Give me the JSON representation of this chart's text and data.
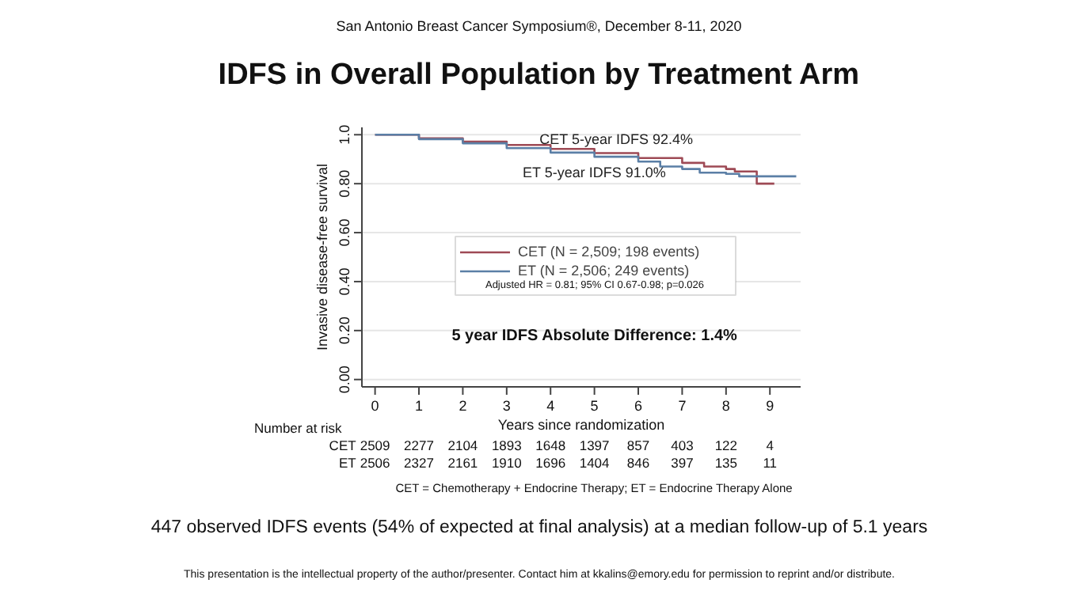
{
  "chart_data": {
    "type": "step",
    "subtitle": "San Antonio Breast Cancer Symposium®, December 8-11, 2020",
    "title": "IDFS in Overall Population by Treatment Arm",
    "xlabel": "Years since randomization",
    "ylabel": "Invasive disease-free survival",
    "xlim": [
      -0.3,
      9.7
    ],
    "xticks": [
      0,
      1,
      2,
      3,
      4,
      5,
      6,
      7,
      8,
      9
    ],
    "ylim": [
      -0.03,
      1.03
    ],
    "yticks": [
      {
        "value": 0,
        "label": "0.00"
      },
      {
        "value": 0.2,
        "label": "0.20"
      },
      {
        "value": 0.4,
        "label": "0.40"
      },
      {
        "value": 0.6,
        "label": "0.60"
      },
      {
        "value": 0.8,
        "label": "0.80"
      },
      {
        "value": 1,
        "label": "1.0"
      }
    ],
    "grid": "y",
    "legend": "center",
    "series": [
      {
        "name": "CET (N = 2,509; 198 events)",
        "color": "#9e4a55",
        "x": [
          0,
          1,
          2,
          3,
          4,
          5,
          6,
          7,
          7.5,
          8,
          8.2,
          8.7,
          9.1
        ],
        "values": [
          1.0,
          0.985,
          0.972,
          0.958,
          0.942,
          0.925,
          0.905,
          0.885,
          0.87,
          0.86,
          0.85,
          0.8,
          0.8
        ]
      },
      {
        "name": "ET (N = 2,506; 249 events)",
        "color": "#5b7fa6",
        "x": [
          0,
          1,
          2,
          3,
          4,
          5,
          6,
          6.5,
          7,
          7.4,
          8,
          8.3,
          9.6
        ],
        "values": [
          1.0,
          0.982,
          0.965,
          0.945,
          0.927,
          0.91,
          0.89,
          0.87,
          0.86,
          0.845,
          0.84,
          0.83,
          0.83
        ]
      }
    ],
    "annotations": [
      {
        "text": "CET 5-year IDFS 92.4%",
        "x": 5.5,
        "y": 0.925
      },
      {
        "text": "ET 5-year IDFS 91.0%",
        "x": 5.0,
        "y": 0.91
      },
      "Adjusted HR = 0.81; 95% CI 0.67-0.98; p=0.026",
      "5 year IDFS Absolute Difference: 1.4%",
      "Number at risk",
      "CET 2509 2277 2104 1893 1648 1397 857 403 122 4",
      "ET 2506 2327 2161 1910 1696 1404 846 397 135 11",
      "CET = Chemotherapy + Endocrine Therapy; ET = Endocrine Therapy Alone",
      "447 observed IDFS events (54% of expected at final analysis) at a median follow-up of 5.1 years",
      "This presentation is the intellectual property of the author/presenter. Contact him at kkalins@emory.edu for permission to reprint and/or distribute."
    ]
  }
}
